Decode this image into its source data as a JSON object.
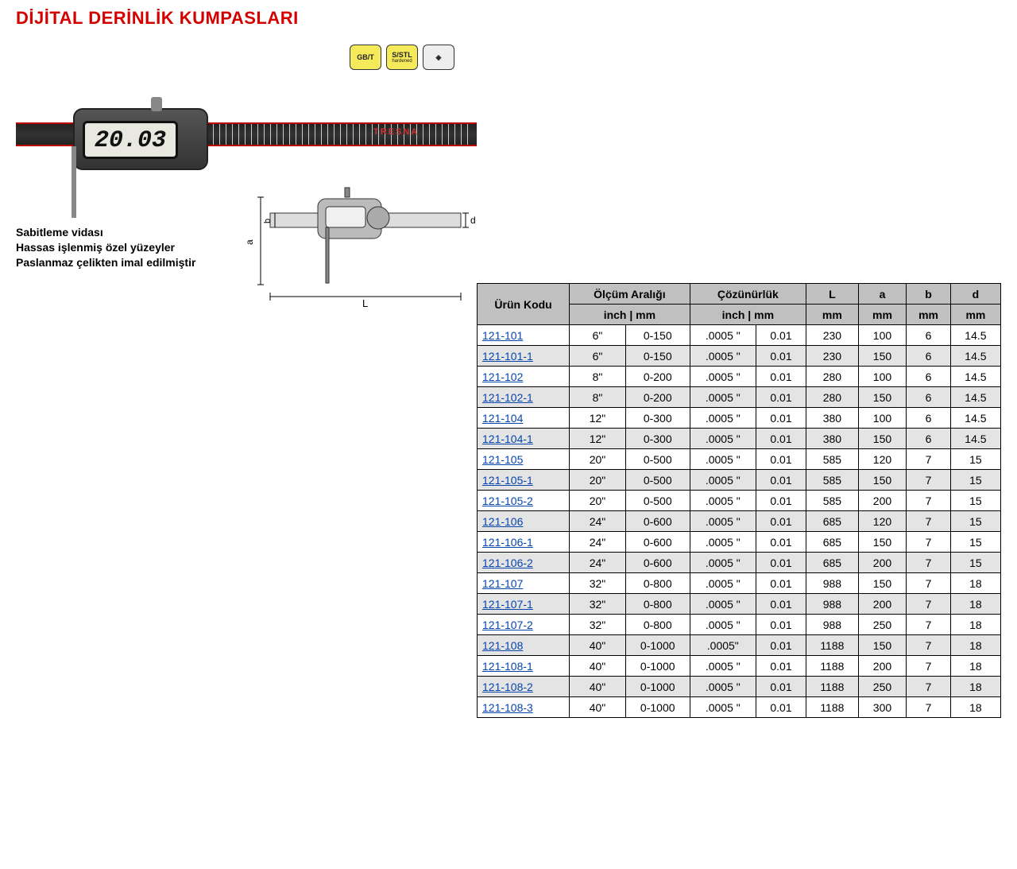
{
  "title": "DİJİTAL DERİNLİK KUMPASLARI",
  "badges": {
    "gbt": "GB/T",
    "sstl": "S/STL",
    "sstl_sub": "hardened",
    "diamond": "◈"
  },
  "lcd_value": "20.03",
  "brand": "TRESNA",
  "features": [
    "Sabitleme vidası",
    "Hassas işlenmiş özel yüzeyler",
    "Paslanmaz çelikten imal edilmiştir"
  ],
  "diagram_labels": {
    "a": "a",
    "b": "b",
    "d": "d",
    "L": "L"
  },
  "table": {
    "headers": {
      "code": "Ürün Kodu",
      "range": "Ölçüm Aralığı",
      "resolution": "Çözünürlük",
      "L": "L",
      "a": "a",
      "b": "b",
      "d": "d",
      "inch_mm": "inch | mm",
      "mm": "mm"
    },
    "rows": [
      {
        "code": "121-101",
        "inch": "6\"",
        "mm": "0-150",
        "rin": ".0005 \"",
        "rmm": "0.01",
        "L": "230",
        "a": "100",
        "b": "6",
        "d": "14.5",
        "alt": false
      },
      {
        "code": "121-101-1",
        "inch": "6\"",
        "mm": "0-150",
        "rin": ".0005 \"",
        "rmm": "0.01",
        "L": "230",
        "a": "150",
        "b": "6",
        "d": "14.5",
        "alt": true
      },
      {
        "code": "121-102",
        "inch": "8\"",
        "mm": "0-200",
        "rin": ".0005 \"",
        "rmm": "0.01",
        "L": "280",
        "a": "100",
        "b": "6",
        "d": "14.5",
        "alt": false
      },
      {
        "code": "121-102-1",
        "inch": "8\"",
        "mm": "0-200",
        "rin": ".0005 \"",
        "rmm": "0.01",
        "L": "280",
        "a": "150",
        "b": "6",
        "d": "14.5",
        "alt": true
      },
      {
        "code": "121-104",
        "inch": "12\"",
        "mm": "0-300",
        "rin": ".0005 \"",
        "rmm": "0.01",
        "L": "380",
        "a": "100",
        "b": "6",
        "d": "14.5",
        "alt": false
      },
      {
        "code": "121-104-1",
        "inch": "12\"",
        "mm": "0-300",
        "rin": ".0005 \"",
        "rmm": "0.01",
        "L": "380",
        "a": "150",
        "b": "6",
        "d": "14.5",
        "alt": true
      },
      {
        "code": "121-105",
        "inch": "20\"",
        "mm": "0-500",
        "rin": ".0005 \"",
        "rmm": "0.01",
        "L": "585",
        "a": "120",
        "b": "7",
        "d": "15",
        "alt": false
      },
      {
        "code": "121-105-1",
        "inch": "20\"",
        "mm": "0-500",
        "rin": ".0005 \"",
        "rmm": "0.01",
        "L": "585",
        "a": "150",
        "b": "7",
        "d": "15",
        "alt": true
      },
      {
        "code": "121-105-2",
        "inch": "20\"",
        "mm": "0-500",
        "rin": ".0005 \"",
        "rmm": "0.01",
        "L": "585",
        "a": "200",
        "b": "7",
        "d": "15",
        "alt": false
      },
      {
        "code": "121-106",
        "inch": "24\"",
        "mm": "0-600",
        "rin": ".0005 \"",
        "rmm": "0.01",
        "L": "685",
        "a": "120",
        "b": "7",
        "d": "15",
        "alt": true
      },
      {
        "code": "121-106-1",
        "inch": "24\"",
        "mm": "0-600",
        "rin": ".0005 \"",
        "rmm": "0.01",
        "L": "685",
        "a": "150",
        "b": "7",
        "d": "15",
        "alt": false
      },
      {
        "code": "121-106-2",
        "inch": "24\"",
        "mm": "0-600",
        "rin": ".0005 \"",
        "rmm": "0.01",
        "L": "685",
        "a": "200",
        "b": "7",
        "d": "15",
        "alt": true
      },
      {
        "code": "121-107",
        "inch": "32\"",
        "mm": "0-800",
        "rin": ".0005 \"",
        "rmm": "0.01",
        "L": "988",
        "a": "150",
        "b": "7",
        "d": "18",
        "alt": false
      },
      {
        "code": "121-107-1",
        "inch": "32\"",
        "mm": "0-800",
        "rin": ".0005 \"",
        "rmm": "0.01",
        "L": "988",
        "a": "200",
        "b": "7",
        "d": "18",
        "alt": true
      },
      {
        "code": "121-107-2",
        "inch": "32\"",
        "mm": "0-800",
        "rin": ".0005 \"",
        "rmm": "0.01",
        "L": "988",
        "a": "250",
        "b": "7",
        "d": "18",
        "alt": false
      },
      {
        "code": "121-108",
        "inch": "40\"",
        "mm": "0-1000",
        "rin": ".0005\"",
        "rmm": "0.01",
        "L": "1188",
        "a": "150",
        "b": "7",
        "d": "18",
        "alt": true
      },
      {
        "code": "121-108-1",
        "inch": "40\"",
        "mm": "0-1000",
        "rin": ".0005 \"",
        "rmm": "0.01",
        "L": "1188",
        "a": "200",
        "b": "7",
        "d": "18",
        "alt": false
      },
      {
        "code": "121-108-2",
        "inch": "40\"",
        "mm": "0-1000",
        "rin": ".0005 \"",
        "rmm": "0.01",
        "L": "1188",
        "a": "250",
        "b": "7",
        "d": "18",
        "alt": true
      },
      {
        "code": "121-108-3",
        "inch": "40\"",
        "mm": "0-1000",
        "rin": ".0005 \"",
        "rmm": "0.01",
        "L": "1188",
        "a": "300",
        "b": "7",
        "d": "18",
        "alt": false
      }
    ]
  },
  "colors": {
    "title": "#d40000",
    "link": "#0645ad",
    "header_bg": "#c0c0c0",
    "alt_bg": "#e4e4e4",
    "badge_bg": "#f5ea5a"
  }
}
